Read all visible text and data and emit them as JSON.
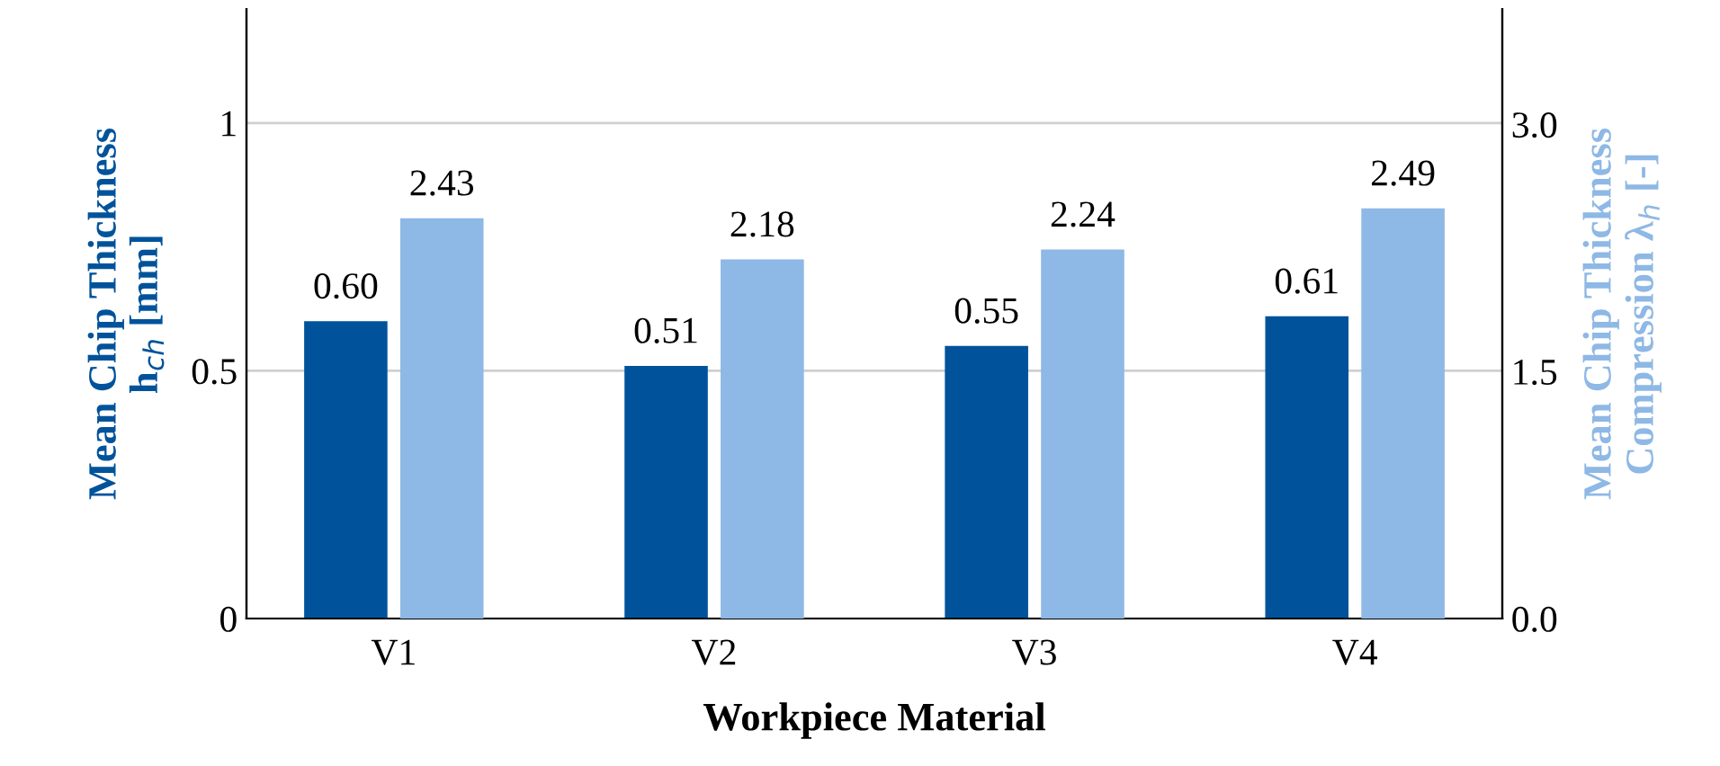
{
  "chart_data": {
    "type": "bar",
    "xlabel": "Workpiece Material",
    "ylabel": "Mean Chip Thickness\nh$_{ch}$ [mm]",
    "y2label": "Mean Chip Thickness\nCompression λ$_{h}$ [-]",
    "categories": [
      "V1",
      "V2",
      "V3",
      "V4"
    ],
    "series": [
      {
        "color": "#00539b",
        "values": [
          0.6,
          0.51,
          0.55,
          0.61
        ],
        "value_labels": [
          "0.60",
          "0.51",
          "0.55",
          "0.61"
        ]
      },
      {
        "color": "#8eb8e5",
        "axis": "y2",
        "values": [
          2.43,
          2.18,
          2.24,
          2.49
        ],
        "value_labels": [
          "2.43",
          "2.18",
          "2.24",
          "2.49"
        ]
      }
    ],
    "ylim": [
      0,
      1.23
    ],
    "yticks": [
      0,
      0.5,
      1
    ],
    "y2lim": [
      0,
      3.7
    ],
    "y2ticks": [
      {
        "value": 0,
        "label": "0.0"
      },
      {
        "value": 1.5,
        "label": "1.5"
      },
      {
        "value": 3,
        "label": "3.0"
      }
    ],
    "grid": "y",
    "legend": false
  }
}
